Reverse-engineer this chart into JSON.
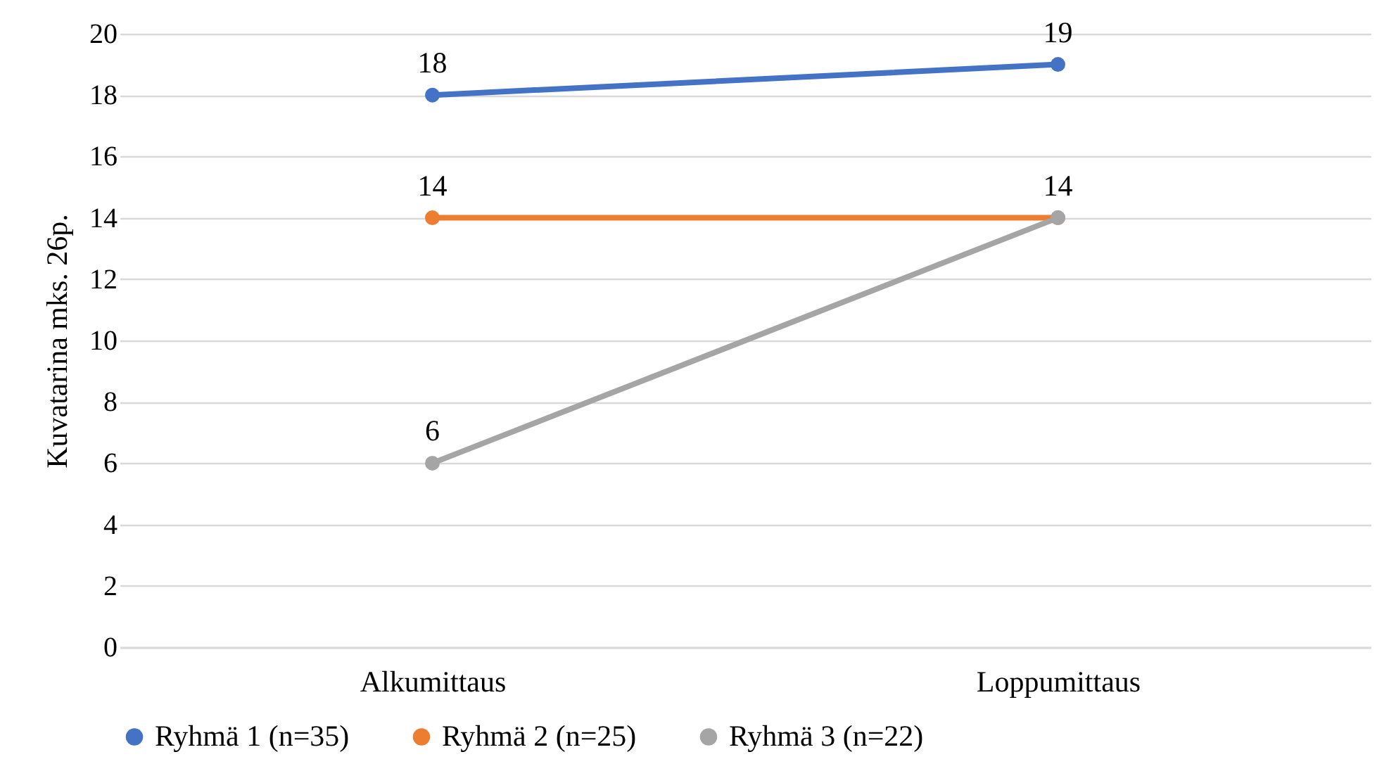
{
  "chart_data": {
    "type": "line",
    "ylabel": "Kuvatarina mks. 26p.",
    "categories": [
      "Alkumittaus",
      "Loppumittaus"
    ],
    "series": [
      {
        "name": "Ryhmä 1 (n=35)",
        "color": "#4472c4",
        "values": [
          18,
          19
        ]
      },
      {
        "name": "Ryhmä 2 (n=25)",
        "color": "#ed7d31",
        "values": [
          14,
          14
        ]
      },
      {
        "name": "Ryhmä 3 (n=22)",
        "color": "#a5a5a5",
        "values": [
          6,
          14
        ],
        "value_labels": [
          "6",
          null
        ]
      }
    ],
    "ylim": [
      0,
      20
    ],
    "yticks": [
      0,
      2,
      4,
      6,
      8,
      10,
      12,
      14,
      16,
      18,
      20
    ],
    "grid": "y",
    "legend": "bottom",
    "marker": "circle",
    "data_labels": true
  }
}
